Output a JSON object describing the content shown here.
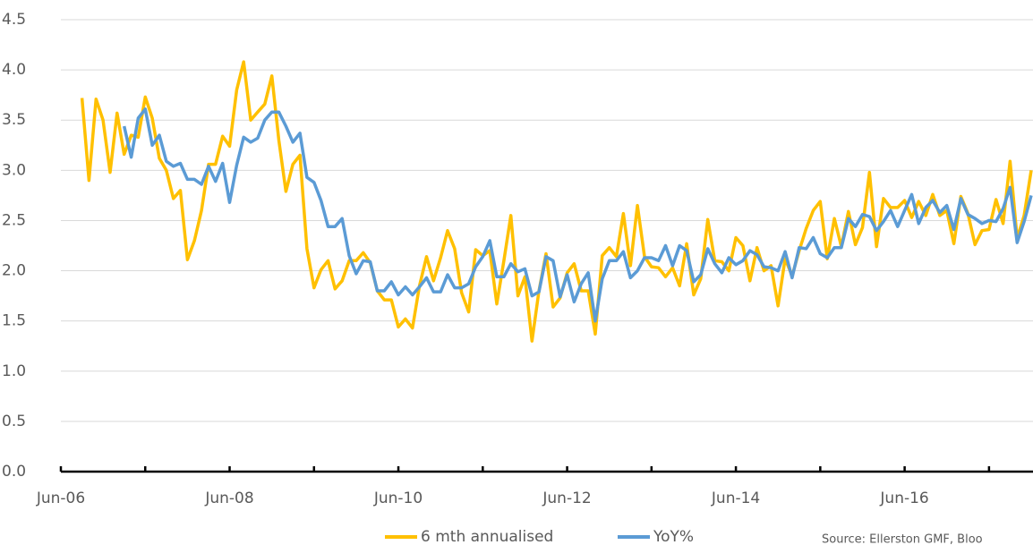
{
  "chart_data": {
    "type": "line",
    "categories": [
      "Jun-06",
      null,
      null,
      null,
      null,
      null,
      null,
      null,
      null,
      null,
      null,
      null,
      null,
      null,
      null,
      null,
      null,
      null,
      null,
      null,
      null,
      null,
      null,
      null,
      "Jun-08",
      null,
      null,
      null,
      null,
      null,
      null,
      null,
      null,
      null,
      null,
      null,
      null,
      null,
      null,
      null,
      null,
      null,
      null,
      null,
      null,
      null,
      null,
      null,
      "Jun-10",
      null,
      null,
      null,
      null,
      null,
      null,
      null,
      null,
      null,
      null,
      null,
      null,
      null,
      null,
      null,
      null,
      null,
      null,
      null,
      null,
      null,
      null,
      null,
      "Jun-12",
      null,
      null,
      null,
      null,
      null,
      null,
      null,
      null,
      null,
      null,
      null,
      null,
      null,
      null,
      null,
      null,
      null,
      null,
      null,
      null,
      null,
      null,
      null,
      "Jun-14",
      null,
      null,
      null,
      null,
      null,
      null,
      null,
      null,
      null,
      null,
      null,
      null,
      null,
      null,
      null,
      null,
      null,
      null,
      null,
      null,
      null,
      null,
      null,
      "Jun-16",
      null,
      null,
      null,
      null,
      null,
      null,
      null,
      null,
      null,
      null,
      null,
      null,
      null,
      null,
      null,
      null,
      null,
      null
    ],
    "series": [
      {
        "name": "6 mth annualised",
        "color": "#FFC000",
        "values": [
          null,
          null,
          null,
          3.72,
          2.9,
          3.71,
          3.5,
          2.98,
          3.57,
          3.16,
          3.35,
          3.33,
          3.73,
          3.52,
          3.12,
          3.0,
          2.72,
          2.8,
          2.11,
          2.3,
          2.6,
          3.06,
          3.06,
          3.34,
          3.24,
          3.8,
          4.08,
          3.5,
          3.58,
          3.66,
          3.94,
          3.3,
          2.79,
          3.06,
          3.15,
          2.22,
          1.83,
          2.01,
          2.1,
          1.82,
          1.9,
          2.1,
          2.1,
          2.18,
          2.08,
          1.8,
          1.71,
          1.71,
          1.44,
          1.52,
          1.43,
          1.85,
          2.14,
          1.9,
          2.13,
          2.4,
          2.22,
          1.78,
          1.59,
          2.21,
          2.15,
          2.2,
          1.67,
          2.1,
          2.55,
          1.75,
          1.94,
          1.3,
          1.8,
          2.17,
          1.64,
          1.73,
          1.98,
          2.07,
          1.8,
          1.8,
          1.37,
          2.15,
          2.23,
          2.14,
          2.57,
          2.05,
          2.65,
          2.14,
          2.04,
          2.03,
          1.94,
          2.03,
          1.85,
          2.27,
          1.76,
          1.92,
          2.51,
          2.1,
          2.09,
          2.0,
          2.33,
          2.25,
          1.9,
          2.23,
          2.0,
          2.05,
          1.65,
          2.12,
          1.95,
          2.2,
          2.42,
          2.6,
          2.69,
          2.12,
          2.52,
          2.24,
          2.59,
          2.26,
          2.43,
          2.98,
          2.24,
          2.72,
          2.63,
          2.63,
          2.7,
          2.53,
          2.69,
          2.55,
          2.76,
          2.55,
          2.6,
          2.27,
          2.74,
          2.57,
          2.26,
          2.4,
          2.41,
          2.71,
          2.47,
          3.09,
          2.32,
          2.55,
          3.0
        ]
      },
      {
        "name": "YoY%",
        "color": "#5B9BD5",
        "values": [
          null,
          null,
          null,
          null,
          null,
          null,
          null,
          null,
          null,
          3.44,
          3.13,
          3.52,
          3.61,
          3.25,
          3.35,
          3.09,
          3.04,
          3.07,
          2.91,
          2.91,
          2.86,
          3.04,
          2.89,
          3.07,
          2.68,
          3.05,
          3.33,
          3.28,
          3.32,
          3.5,
          3.58,
          3.58,
          3.44,
          3.28,
          3.37,
          2.93,
          2.88,
          2.7,
          2.44,
          2.44,
          2.52,
          2.15,
          1.97,
          2.1,
          2.09,
          1.8,
          1.8,
          1.89,
          1.76,
          1.84,
          1.76,
          1.84,
          1.93,
          1.79,
          1.79,
          1.96,
          1.83,
          1.83,
          1.87,
          2.04,
          2.14,
          2.3,
          1.94,
          1.94,
          2.07,
          1.99,
          2.02,
          1.75,
          1.79,
          2.14,
          2.1,
          1.74,
          1.96,
          1.69,
          1.87,
          1.98,
          1.5,
          1.92,
          2.1,
          2.1,
          2.19,
          1.93,
          2.0,
          2.13,
          2.13,
          2.1,
          2.25,
          2.05,
          2.25,
          2.2,
          1.89,
          1.96,
          2.22,
          2.07,
          1.98,
          2.13,
          2.06,
          2.1,
          2.2,
          2.16,
          2.04,
          2.03,
          2.0,
          2.19,
          1.93,
          2.23,
          2.22,
          2.33,
          2.17,
          2.13,
          2.23,
          2.23,
          2.52,
          2.44,
          2.56,
          2.54,
          2.4,
          2.49,
          2.6,
          2.44,
          2.6,
          2.76,
          2.47,
          2.63,
          2.7,
          2.58,
          2.65,
          2.41,
          2.72,
          2.56,
          2.52,
          2.47,
          2.5,
          2.49,
          2.62,
          2.83,
          2.28,
          2.49,
          2.75
        ]
      }
    ],
    "ylim": [
      0,
      4.5
    ],
    "yticks": [
      {
        "value": 0,
        "label": "0.0"
      },
      0.5,
      {
        "value": 1,
        "label": "1.0"
      },
      1.5,
      {
        "value": 2,
        "label": "2.0"
      },
      2.5,
      {
        "value": 3,
        "label": "3.0"
      },
      3.5,
      {
        "value": 4,
        "label": "4.0"
      },
      4.5
    ],
    "grid": true,
    "legend": "bottom",
    "source": "Source: Ellerston GMF, Bloo"
  }
}
